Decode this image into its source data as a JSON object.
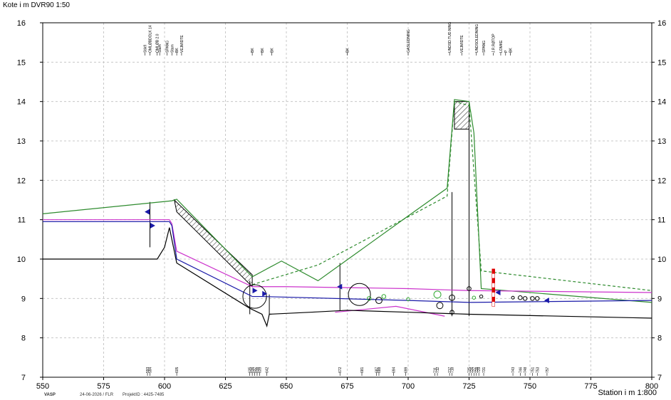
{
  "header": {
    "title": "Kote i m DVR90 1:50"
  },
  "footer": {
    "station_label": "Station i m  1:800",
    "vasp": "VASP",
    "date": "24-06-2026 / FLR",
    "project": "ProjektID : 4425-7485"
  },
  "chart_data": {
    "type": "line",
    "xlim": [
      550,
      800
    ],
    "ylim": [
      7,
      16
    ],
    "xticks": [
      550,
      575,
      600,
      625,
      650,
      675,
      700,
      725,
      750,
      775,
      800
    ],
    "yticks": [
      7,
      8,
      9,
      10,
      11,
      12,
      13,
      14,
      15,
      16
    ],
    "grid": true,
    "xlabel": "Station i m  1:800",
    "ylabel": "Kote i m DVR90 1:50",
    "series": [
      {
        "color": "#2e8b2e",
        "style": "solid",
        "x": [
          550,
          603,
          605,
          636,
          648,
          663,
          699,
          716,
          719,
          725,
          727,
          730,
          800
        ],
        "y": [
          11.15,
          11.48,
          11.52,
          9.55,
          9.95,
          9.45,
          11.05,
          11.8,
          14.05,
          14.0,
          13.2,
          9.25,
          8.9
        ]
      },
      {
        "color": "#2e8b2e",
        "style": "dashed",
        "x": [
          636,
          663,
          716,
          719,
          725,
          730,
          800
        ],
        "y": [
          9.35,
          9.85,
          11.6,
          14.0,
          13.9,
          9.7,
          9.2
        ]
      },
      {
        "color": "#cc33cc",
        "style": "solid",
        "x": [
          550,
          602,
          603,
          605,
          636,
          650,
          700,
          725,
          800
        ],
        "y": [
          11.0,
          11.0,
          10.9,
          10.2,
          9.3,
          9.3,
          9.25,
          9.2,
          9.15
        ]
      },
      {
        "color": "#cc33cc",
        "style": "solid",
        "x": [
          670,
          695,
          715
        ],
        "y": [
          8.65,
          8.8,
          8.55
        ]
      },
      {
        "color": "#1a1aa8",
        "style": "solid",
        "x": [
          550,
          602,
          603,
          605,
          636,
          640,
          700,
          725,
          800
        ],
        "y": [
          10.95,
          10.95,
          10.85,
          10.0,
          9.05,
          9.05,
          8.95,
          8.9,
          8.95
        ]
      },
      {
        "color": "#000000",
        "style": "solid",
        "x": [
          550,
          597,
          600,
          602,
          603,
          605,
          635,
          640,
          642,
          643,
          660,
          675,
          700,
          725,
          800
        ],
        "y": [
          10.0,
          10.0,
          10.3,
          10.8,
          10.5,
          9.9,
          8.75,
          8.6,
          8.3,
          8.6,
          8.65,
          8.7,
          8.65,
          8.6,
          8.5
        ]
      }
    ],
    "circles": [
      {
        "x": 637,
        "y": 9.05,
        "r": 0.3,
        "color": "#000000"
      },
      {
        "x": 680,
        "y": 9.1,
        "r": 0.28,
        "color": "#000000"
      },
      {
        "x": 688,
        "y": 8.95,
        "r": 0.08,
        "color": "#000000"
      },
      {
        "x": 684,
        "y": 9.0,
        "r": 0.05,
        "color": "#33aa33"
      },
      {
        "x": 690,
        "y": 9.05,
        "r": 0.05,
        "color": "#33aa33"
      },
      {
        "x": 700,
        "y": 8.98,
        "r": 0.04,
        "color": "#33aa33"
      },
      {
        "x": 712,
        "y": 9.1,
        "r": 0.09,
        "color": "#33aa33"
      },
      {
        "x": 713,
        "y": 8.82,
        "r": 0.08,
        "color": "#000000"
      },
      {
        "x": 718,
        "y": 9.02,
        "r": 0.07,
        "color": "#000000"
      },
      {
        "x": 718,
        "y": 8.65,
        "r": 0.05,
        "color": "#000000"
      },
      {
        "x": 725,
        "y": 9.25,
        "r": 0.05,
        "color": "#000000"
      },
      {
        "x": 727,
        "y": 9.02,
        "r": 0.04,
        "color": "#33aa33"
      },
      {
        "x": 730,
        "y": 9.05,
        "r": 0.04,
        "color": "#000000"
      },
      {
        "x": 743,
        "y": 9.02,
        "r": 0.03,
        "color": "#000000"
      },
      {
        "x": 746,
        "y": 9.02,
        "r": 0.05,
        "color": "#000000"
      },
      {
        "x": 748,
        "y": 9.0,
        "r": 0.05,
        "color": "#000000"
      },
      {
        "x": 751,
        "y": 9.0,
        "r": 0.05,
        "color": "#000000"
      },
      {
        "x": 753,
        "y": 9.0,
        "r": 0.05,
        "color": "#000000"
      }
    ],
    "markers": [
      {
        "x": 593,
        "y": 11.2,
        "dir": "left"
      },
      {
        "x": 595,
        "y": 10.85,
        "dir": "right"
      },
      {
        "x": 637,
        "y": 9.2,
        "dir": "right"
      },
      {
        "x": 641,
        "y": 9.12,
        "dir": "right"
      },
      {
        "x": 672,
        "y": 9.3,
        "dir": "left"
      },
      {
        "x": 737,
        "y": 9.15,
        "dir": "left"
      },
      {
        "x": 757,
        "y": 8.95,
        "dir": "left"
      }
    ],
    "verticals": [
      {
        "x": 594,
        "y1": 10.3,
        "y2": 11.45
      },
      {
        "x": 635,
        "y1": 8.6,
        "y2": 9.45
      },
      {
        "x": 643,
        "y1": 8.6,
        "y2": 9.1
      },
      {
        "x": 672,
        "y1": 8.7,
        "y2": 9.9
      },
      {
        "x": 718,
        "y1": 8.55,
        "y2": 11.7
      },
      {
        "x": 725,
        "y1": 8.55,
        "y2": 13.3
      }
    ],
    "top_labels": [
      {
        "x": 592,
        "text": "Stikfl"
      },
      {
        "x": 594,
        "text": "OMLØBDOLK 14"
      },
      {
        "x": 597,
        "text": "OMLØB 2.0"
      },
      {
        "x": 598,
        "text": "Stam"
      },
      {
        "x": 601,
        "text": "SPANG"
      },
      {
        "x": 603,
        "text": "Stam"
      },
      {
        "x": 605,
        "text": "BK"
      },
      {
        "x": 607,
        "text": "VEJMIDTE"
      },
      {
        "x": 636,
        "text": "BK"
      },
      {
        "x": 640,
        "text": "BK"
      },
      {
        "x": 644,
        "text": "BK"
      },
      {
        "x": 675,
        "text": "BK"
      },
      {
        "x": 700,
        "text": "GASLEDNING"
      },
      {
        "x": 717,
        "text": "UNDSD.TUD.NING"
      },
      {
        "x": 722,
        "text": "VEJMIDTE"
      },
      {
        "x": 728,
        "text": "UNDSOLEDNING"
      },
      {
        "x": 731,
        "text": "SPANG"
      },
      {
        "x": 735,
        "text": "J.R.RØTOP"
      },
      {
        "x": 738,
        "text": "LOMKE"
      },
      {
        "x": 740,
        "text": "P"
      },
      {
        "x": 742,
        "text": "BK"
      }
    ],
    "bottom_labels": [
      {
        "x": 593,
        "text": "593"
      },
      {
        "x": 594,
        "text": "594"
      },
      {
        "x": 605,
        "text": "605"
      },
      {
        "x": 635,
        "text": "635"
      },
      {
        "x": 636,
        "text": "636"
      },
      {
        "x": 637,
        "text": "637"
      },
      {
        "x": 638,
        "text": "638"
      },
      {
        "x": 639,
        "text": "639"
      },
      {
        "x": 642,
        "text": "642"
      },
      {
        "x": 672,
        "text": "672"
      },
      {
        "x": 681,
        "text": "681"
      },
      {
        "x": 687,
        "text": "687"
      },
      {
        "x": 688,
        "text": "688"
      },
      {
        "x": 694,
        "text": "694"
      },
      {
        "x": 699,
        "text": "699"
      },
      {
        "x": 711,
        "text": "711"
      },
      {
        "x": 712,
        "text": "712"
      },
      {
        "x": 717,
        "text": "717"
      },
      {
        "x": 718,
        "text": "718"
      },
      {
        "x": 725,
        "text": "725"
      },
      {
        "x": 726,
        "text": "726"
      },
      {
        "x": 727,
        "text": "727"
      },
      {
        "x": 728,
        "text": "728"
      },
      {
        "x": 729,
        "text": "729"
      },
      {
        "x": 731,
        "text": "731"
      },
      {
        "x": 743,
        "text": "743"
      },
      {
        "x": 746,
        "text": "746"
      },
      {
        "x": 748,
        "text": "748"
      },
      {
        "x": 751,
        "text": "751"
      },
      {
        "x": 753,
        "text": "753"
      },
      {
        "x": 757,
        "text": "757"
      }
    ],
    "hatches": [
      {
        "points": [
          [
            604,
            11.5
          ],
          [
            605,
            11.2
          ],
          [
            636,
            9.3
          ],
          [
            636,
            9.6
          ]
        ]
      },
      {
        "points": [
          [
            719,
            14.0
          ],
          [
            725,
            14.0
          ],
          [
            725,
            13.3
          ],
          [
            719,
            13.3
          ]
        ]
      }
    ],
    "pole": {
      "x": 735,
      "y1": 8.8,
      "y2": 9.75
    }
  }
}
